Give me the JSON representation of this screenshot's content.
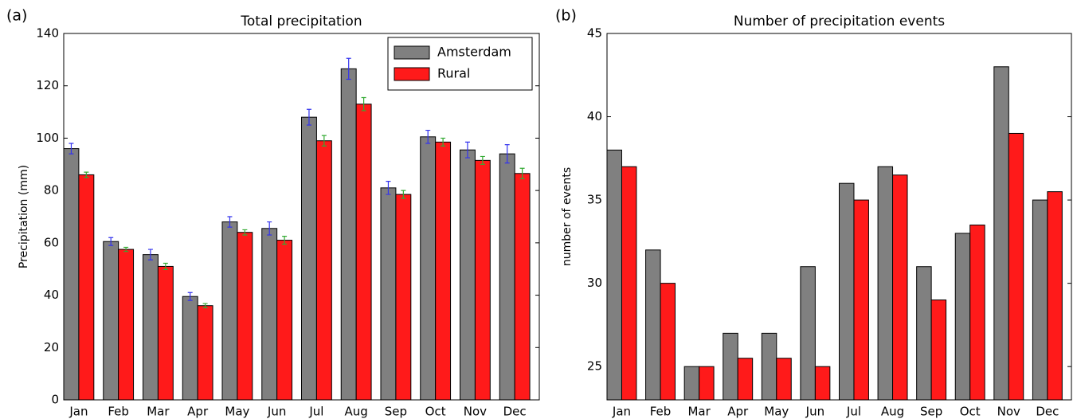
{
  "chart_data": [
    {
      "type": "bar",
      "panel_label": "(a)",
      "title": "Total precipitation",
      "ylabel": "Precipitation (mm)",
      "categories": [
        "Jan",
        "Feb",
        "Mar",
        "Apr",
        "May",
        "Jun",
        "Jul",
        "Aug",
        "Sep",
        "Oct",
        "Nov",
        "Dec"
      ],
      "series": [
        {
          "name": "Amsterdam",
          "color": "#808080",
          "error_color": "#3333ee",
          "values": [
            96,
            60.5,
            55.5,
            39.5,
            68,
            65.5,
            108,
            126.5,
            81,
            100.5,
            95.5,
            94
          ],
          "errors": [
            2,
            1.5,
            2,
            1.5,
            2,
            2.5,
            3,
            4,
            2.5,
            2.5,
            3,
            3.5
          ]
        },
        {
          "name": "Rural",
          "color": "#ff1a1a",
          "error_color": "#33aa33",
          "values": [
            86,
            57.5,
            51,
            36,
            64,
            61,
            99,
            113,
            78.5,
            98.5,
            91.5,
            86.5
          ],
          "errors": [
            1,
            0.8,
            1.2,
            0.8,
            1,
            1.5,
            2,
            2.5,
            1.5,
            1.5,
            1.5,
            2
          ]
        }
      ],
      "ylim": [
        0,
        140
      ],
      "yticks": [
        0,
        20,
        40,
        60,
        80,
        100,
        120,
        140
      ],
      "legend": "upper right"
    },
    {
      "type": "bar",
      "panel_label": "(b)",
      "title": "Number of precipitation events",
      "ylabel": "number of events",
      "categories": [
        "Jan",
        "Feb",
        "Mar",
        "Apr",
        "May",
        "Jun",
        "Jul",
        "Aug",
        "Sep",
        "Oct",
        "Nov",
        "Dec"
      ],
      "series": [
        {
          "name": "Amsterdam",
          "color": "#808080",
          "values": [
            38,
            32,
            25,
            27,
            27,
            31,
            36,
            37,
            31,
            33,
            43,
            35
          ]
        },
        {
          "name": "Rural",
          "color": "#ff1a1a",
          "values": [
            37,
            30,
            25,
            25.5,
            25.5,
            25,
            35,
            36.5,
            29,
            33.5,
            39,
            35.5
          ]
        }
      ],
      "ylim": [
        23,
        45
      ],
      "yticks": [
        25,
        30,
        35,
        40,
        45
      ],
      "legend": "none"
    }
  ]
}
